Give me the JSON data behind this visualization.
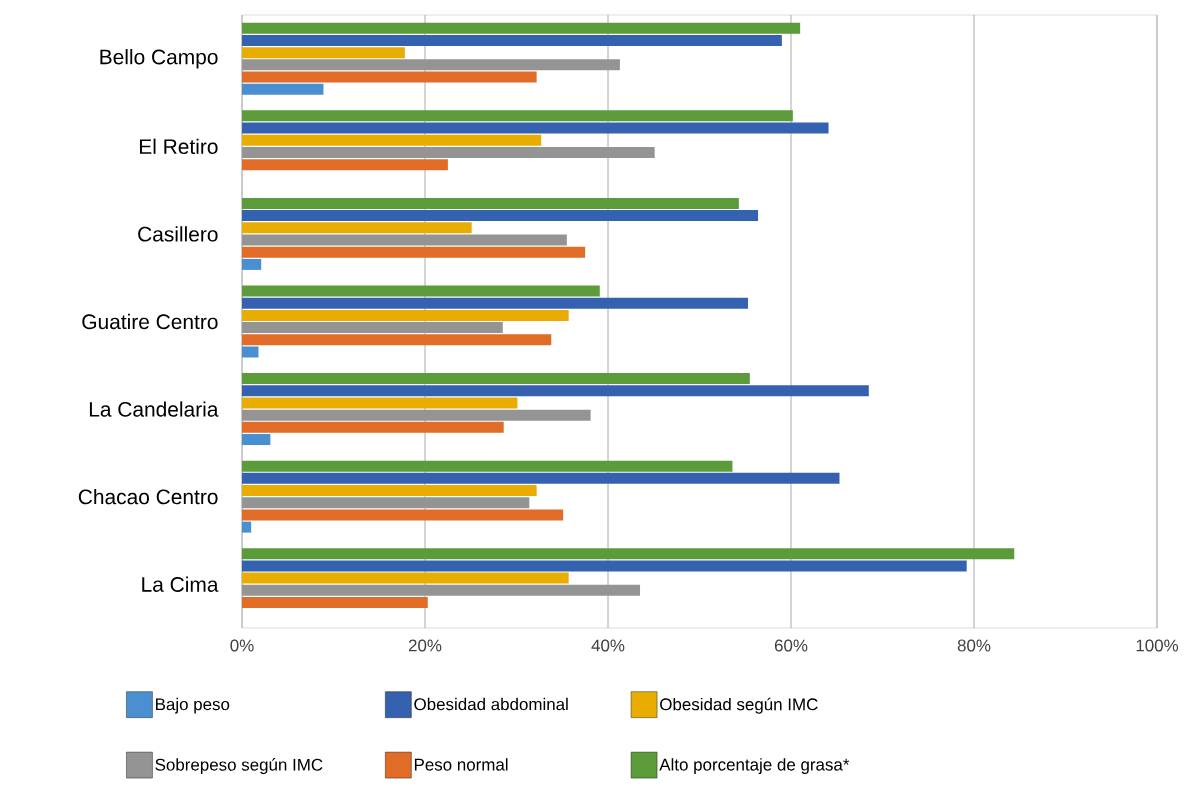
{
  "chart_data": {
    "type": "bar",
    "orientation": "horizontal",
    "categories": [
      "Bello Campo",
      "El Retiro",
      "Casillero",
      "Guatire Centro",
      "La Candelaria",
      "Chacao Centro",
      "La Cima"
    ],
    "series": [
      {
        "name": "Bajo peso",
        "color": "#4a8fd0",
        "values": [
          8.9,
          0,
          2.1,
          1.8,
          3.1,
          1.0,
          0
        ]
      },
      {
        "name": "Peso normal",
        "color": "#e06c28",
        "values": [
          32.2,
          22.5,
          37.5,
          33.8,
          28.6,
          35.1,
          20.3
        ]
      },
      {
        "name": "Sobrepeso según IMC",
        "color": "#949494",
        "values": [
          41.3,
          45.1,
          35.5,
          28.5,
          38.1,
          31.4,
          43.5
        ]
      },
      {
        "name": "Obesidad según IMC",
        "color": "#e8ad00",
        "values": [
          17.8,
          32.7,
          25.1,
          35.7,
          30.1,
          32.2,
          35.7
        ]
      },
      {
        "name": "Obesidad abdominal",
        "color": "#3462b0",
        "values": [
          59.0,
          64.1,
          56.4,
          55.3,
          68.5,
          65.3,
          79.2
        ]
      },
      {
        "name": "Alto porcentaje de grasa*",
        "color": "#5c9b3a",
        "values": [
          61.0,
          60.2,
          54.3,
          39.1,
          55.5,
          53.6,
          84.4
        ]
      }
    ],
    "xlim": [
      0,
      100
    ],
    "xticks": [
      {
        "value": 0,
        "label": "0%"
      },
      {
        "value": 20,
        "label": "20%"
      },
      {
        "value": 40,
        "label": "40%"
      },
      {
        "value": 60,
        "label": "60%"
      },
      {
        "value": 80,
        "label": "80%"
      },
      {
        "value": 100,
        "label": "100%"
      }
    ],
    "grid": "x",
    "legend": "bottom"
  }
}
